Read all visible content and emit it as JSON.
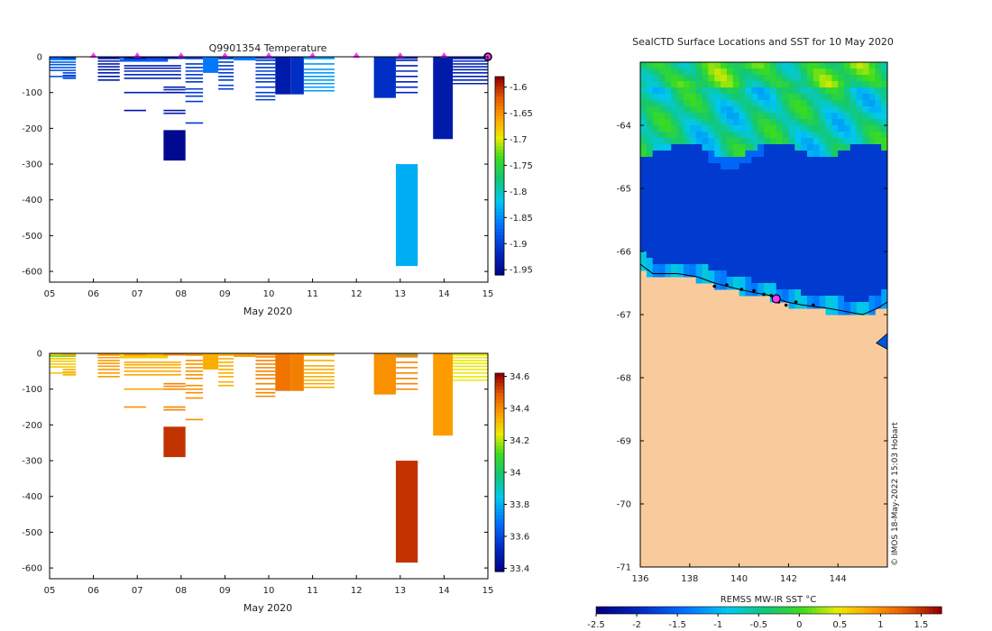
{
  "chart_data": [
    {
      "id": "temperature",
      "type": "heatmap",
      "title": "Q9901354  Temperature",
      "xlabel": "May 2020",
      "ylabel": "",
      "xlim": [
        5,
        15
      ],
      "ylim": [
        -630,
        0
      ],
      "x_ticks": [
        "05",
        "06",
        "07",
        "08",
        "09",
        "10",
        "11",
        "12",
        "13",
        "14",
        "15"
      ],
      "y_ticks": [
        0,
        -100,
        -200,
        -300,
        -400,
        -500,
        -600
      ],
      "surface_markers_day": [
        6,
        7,
        8,
        9,
        10,
        11,
        12,
        13,
        14
      ],
      "end_marker_day": 15,
      "colorbar": {
        "min": -1.96,
        "max": -1.58,
        "ticks": [
          -1.6,
          -1.65,
          -1.7,
          -1.75,
          -1.8,
          -1.85,
          -1.9,
          -1.95
        ]
      },
      "profiles": [
        {
          "x0": 5.0,
          "x1": 5.6,
          "bottom": -10,
          "value": -1.85
        },
        {
          "x0": 5.0,
          "x1": 5.6,
          "bottom": -40,
          "value": -1.88,
          "lines": [
            -15,
            -22,
            -30,
            -38,
            -55
          ]
        },
        {
          "x0": 5.3,
          "x1": 5.6,
          "bottom": -60,
          "value": -1.9,
          "lines": [
            -45,
            -52,
            -60
          ]
        },
        {
          "x0": 6.1,
          "x1": 6.6,
          "bottom": -65,
          "value": -1.93,
          "lines": [
            -5,
            -12,
            -20,
            -28,
            -36,
            -45,
            -55,
            -65
          ]
        },
        {
          "x0": 6.6,
          "x1": 7.7,
          "bottom": -12,
          "value": -1.88,
          "lines": [
            -3,
            -8,
            -12
          ]
        },
        {
          "x0": 6.7,
          "x1": 8.0,
          "bottom": -100,
          "value": -1.92,
          "lines": [
            -25,
            -32,
            -40,
            -50,
            -60,
            -100
          ]
        },
        {
          "x0": 6.7,
          "x1": 7.2,
          "bottom": -150,
          "value": -1.94,
          "lines": [
            -150
          ]
        },
        {
          "x0": 7.6,
          "x1": 8.1,
          "bottom": -100,
          "value": -1.93,
          "lines": [
            -85,
            -92,
            -100,
            -150,
            -158
          ]
        },
        {
          "x0": 7.6,
          "x1": 8.1,
          "bottom": -290,
          "top": -205,
          "value": -1.95
        },
        {
          "x0": 8.1,
          "x1": 8.5,
          "bottom": -125,
          "value": -1.9,
          "lines": [
            -5,
            -20,
            -30,
            -40,
            -50,
            -60,
            -70,
            -90,
            -100,
            -110,
            -125,
            -185
          ]
        },
        {
          "x0": 8.5,
          "x1": 8.85,
          "bottom": -45,
          "value": -1.86
        },
        {
          "x0": 8.85,
          "x1": 9.2,
          "bottom": -90,
          "value": -1.9,
          "lines": [
            -5,
            -15,
            -25,
            -35,
            -45,
            -55,
            -65,
            -80,
            -90
          ]
        },
        {
          "x0": 9.2,
          "x1": 9.7,
          "bottom": -10,
          "value": -1.86
        },
        {
          "x0": 9.7,
          "x1": 10.15,
          "bottom": -120,
          "value": -1.9,
          "lines": [
            -10,
            -20,
            -30,
            -40,
            -50,
            -60,
            -70,
            -85,
            -100,
            -110,
            -120
          ]
        },
        {
          "x0": 10.15,
          "x1": 10.5,
          "bottom": -105,
          "value": -1.93
        },
        {
          "x0": 10.5,
          "x1": 10.8,
          "bottom": -105,
          "value": -1.91
        },
        {
          "x0": 10.8,
          "x1": 11.5,
          "bottom": -95,
          "value": -1.84,
          "lines": [
            -5,
            -20,
            -35,
            -45,
            -55,
            -65,
            -75,
            -85,
            -95
          ]
        },
        {
          "x0": 12.4,
          "x1": 12.9,
          "bottom": -115,
          "value": -1.91
        },
        {
          "x0": 12.9,
          "x1": 13.4,
          "bottom": -100,
          "value": -1.92,
          "lines": [
            -10,
            -25,
            -40,
            -55,
            -70,
            -85,
            -100
          ]
        },
        {
          "x0": 12.9,
          "x1": 13.4,
          "bottom": -585,
          "top": -300,
          "value": -1.83
        },
        {
          "x0": 13.75,
          "x1": 14.2,
          "bottom": -230,
          "value": -1.93
        },
        {
          "x0": 14.2,
          "x1": 15.0,
          "bottom": -75,
          "value": -1.92,
          "lines": [
            -5,
            -12,
            -20,
            -28,
            -36,
            -45,
            -55,
            -65,
            -75
          ]
        }
      ]
    },
    {
      "id": "salinity",
      "type": "heatmap",
      "title": "",
      "xlabel": "May 2020",
      "ylabel": "",
      "xlim": [
        5,
        15
      ],
      "ylim": [
        -630,
        0
      ],
      "x_ticks": [
        "05",
        "06",
        "07",
        "08",
        "09",
        "10",
        "11",
        "12",
        "13",
        "14",
        "15"
      ],
      "y_ticks": [
        0,
        -100,
        -200,
        -300,
        -400,
        -500,
        -600
      ],
      "colorbar": {
        "min": 33.38,
        "max": 34.62,
        "ticks": [
          34.6,
          34.4,
          34.2,
          34,
          33.8,
          33.6,
          33.4
        ]
      },
      "profiles": [
        {
          "x0": 5.0,
          "x1": 5.6,
          "bottom": -10,
          "value": 34.15
        },
        {
          "x0": 5.0,
          "x1": 5.6,
          "bottom": -40,
          "value": 34.3,
          "lines": [
            -15,
            -22,
            -30,
            -38,
            -55
          ]
        },
        {
          "x0": 5.3,
          "x1": 5.6,
          "bottom": -60,
          "value": 34.35,
          "lines": [
            -45,
            -52,
            -60
          ]
        },
        {
          "x0": 6.1,
          "x1": 6.6,
          "bottom": -65,
          "value": 34.38,
          "lines": [
            -5,
            -12,
            -20,
            -28,
            -36,
            -45,
            -55,
            -65
          ]
        },
        {
          "x0": 6.6,
          "x1": 7.7,
          "bottom": -12,
          "value": 34.3,
          "lines": [
            -3,
            -8,
            -12
          ]
        },
        {
          "x0": 6.7,
          "x1": 8.0,
          "bottom": -100,
          "value": 34.36,
          "lines": [
            -25,
            -32,
            -40,
            -50,
            -60,
            -100
          ]
        },
        {
          "x0": 6.7,
          "x1": 7.2,
          "bottom": -150,
          "value": 34.4,
          "lines": [
            -150
          ]
        },
        {
          "x0": 7.6,
          "x1": 8.1,
          "bottom": -100,
          "value": 34.42,
          "lines": [
            -85,
            -92,
            -100,
            -150,
            -158
          ]
        },
        {
          "x0": 7.6,
          "x1": 8.1,
          "bottom": -290,
          "top": -205,
          "value": 34.55
        },
        {
          "x0": 8.1,
          "x1": 8.5,
          "bottom": -125,
          "value": 34.4,
          "lines": [
            -5,
            -20,
            -30,
            -40,
            -50,
            -60,
            -70,
            -90,
            -100,
            -110,
            -125,
            -185
          ]
        },
        {
          "x0": 8.5,
          "x1": 8.85,
          "bottom": -45,
          "value": 34.35
        },
        {
          "x0": 8.85,
          "x1": 9.2,
          "bottom": -90,
          "value": 34.35,
          "lines": [
            -5,
            -15,
            -25,
            -35,
            -45,
            -55,
            -65,
            -80,
            -90
          ]
        },
        {
          "x0": 9.2,
          "x1": 9.7,
          "bottom": -10,
          "value": 34.38
        },
        {
          "x0": 9.7,
          "x1": 10.15,
          "bottom": -120,
          "value": 34.42,
          "lines": [
            -10,
            -20,
            -30,
            -40,
            -50,
            -60,
            -70,
            -85,
            -100,
            -110,
            -120
          ]
        },
        {
          "x0": 10.15,
          "x1": 10.5,
          "bottom": -105,
          "value": 34.45
        },
        {
          "x0": 10.5,
          "x1": 10.8,
          "bottom": -105,
          "value": 34.43
        },
        {
          "x0": 10.8,
          "x1": 11.5,
          "bottom": -95,
          "value": 34.35,
          "lines": [
            -5,
            -20,
            -35,
            -45,
            -55,
            -65,
            -75,
            -85,
            -95
          ]
        },
        {
          "x0": 12.4,
          "x1": 12.9,
          "bottom": -115,
          "value": 34.4
        },
        {
          "x0": 12.9,
          "x1": 13.4,
          "bottom": -8,
          "value": 33.95
        },
        {
          "x0": 12.9,
          "x1": 13.4,
          "bottom": -100,
          "value": 34.42,
          "lines": [
            -10,
            -25,
            -40,
            -55,
            -70,
            -85,
            -100
          ]
        },
        {
          "x0": 12.9,
          "x1": 13.4,
          "bottom": -585,
          "top": -300,
          "value": 34.55
        },
        {
          "x0": 13.75,
          "x1": 14.2,
          "bottom": -230,
          "value": 34.38
        },
        {
          "x0": 14.2,
          "x1": 15.0,
          "bottom": -75,
          "value": 34.25,
          "lines": [
            -5,
            -12,
            -20,
            -28,
            -36,
            -45,
            -55,
            -65,
            -75
          ]
        }
      ]
    },
    {
      "id": "sst_map",
      "type": "heatmap",
      "title": "SealCTD Surface Locations and SST for 10 May 2020",
      "xlabel": "",
      "ylabel": "",
      "xlim": [
        136,
        146
      ],
      "ylim": [
        -71,
        -63
      ],
      "x_ticks": [
        136,
        138,
        140,
        142,
        144
      ],
      "y_ticks": [
        -64,
        -65,
        -66,
        -67,
        -68,
        -69,
        -70,
        -71
      ],
      "colorbar_label": "REMSS MW-IR SST °C",
      "colorbar": {
        "min": -2.5,
        "max": 1.75,
        "ticks": [
          -2.5,
          -2,
          -1.5,
          -1,
          -0.5,
          0,
          0.5,
          1,
          1.5
        ]
      },
      "regions": [
        {
          "name": "warm band",
          "sst": -0.3,
          "lat_from": -63.0,
          "lat_to": -64.35
        },
        {
          "name": "cold ocean",
          "sst": -1.9,
          "lat_from": -64.35,
          "lat_to": -66.8
        },
        {
          "name": "land (Antarctica)",
          "color": "#f9cb9c",
          "lat_from": -66.5,
          "lat_to": -71.0
        }
      ],
      "track_points": [
        [
          139.0,
          -66.55
        ],
        [
          139.5,
          -66.53
        ],
        [
          140.1,
          -66.6
        ],
        [
          140.6,
          -66.62
        ],
        [
          141.0,
          -66.68
        ],
        [
          141.3,
          -66.7
        ],
        [
          141.5,
          -66.72
        ],
        [
          141.6,
          -66.8
        ],
        [
          141.9,
          -66.85
        ],
        [
          142.3,
          -66.8
        ],
        [
          143.0,
          -66.85
        ]
      ],
      "current_location": [
        141.5,
        -66.75
      ],
      "credit": "© IMOS 18-May-2022 15:03 Hobart",
      "colors": {
        "land": "#f9cb9c",
        "ocean": "#0055dd",
        "marker": "#ff33ff"
      }
    }
  ]
}
